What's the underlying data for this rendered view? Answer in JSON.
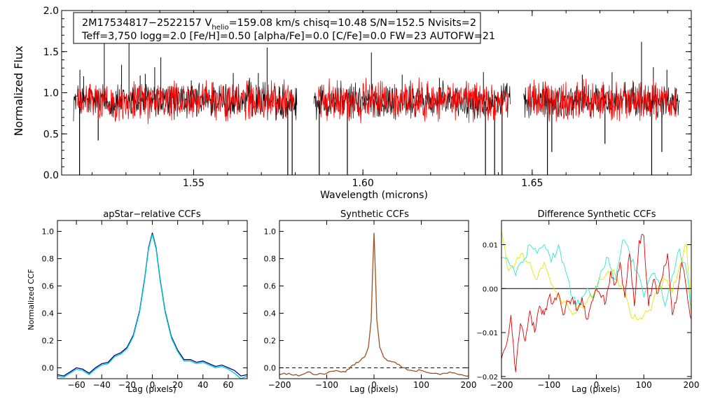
{
  "chart_data": [
    {
      "type": "line",
      "panel": "spectrum",
      "title": "",
      "xlabel": "Wavelength (microns)",
      "ylabel": "Normalized Flux",
      "xlim": [
        1.511,
        1.697
      ],
      "ylim": [
        0.0,
        2.0
      ],
      "xticks": [
        "1.55",
        "1.60",
        "1.65"
      ],
      "yticks": [
        "0.0",
        "0.5",
        "1.0",
        "1.5",
        "2.0"
      ],
      "info_line1_prefix": "2M17534817−2522157  V",
      "info_line1_sub": "helio",
      "info_line1_suffix": "=159.08 km/s  chisq=10.48  S/N=152.5  Nvisits=2",
      "info_line2": "Teff=3,750 logg=2.0 [Fe/H]=0.50 [alpha/Fe]=0.0 [C/Fe]=0.0 FW=23 AUTOFW=21",
      "chips": [
        [
          1.5145,
          1.5805
        ],
        [
          1.5855,
          1.6435
        ],
        [
          1.6475,
          1.6935
        ]
      ],
      "continuum": 0.9,
      "emission_spikes": [
        [
          1.5164,
          1.28
        ],
        [
          1.5175,
          1.2
        ],
        [
          1.5236,
          1.78
        ],
        [
          1.5287,
          1.34
        ],
        [
          1.5309,
          1.62
        ],
        [
          1.5342,
          1.21
        ],
        [
          1.5357,
          1.23
        ],
        [
          1.5385,
          1.31
        ],
        [
          1.5403,
          1.43
        ],
        [
          1.5493,
          1.15
        ],
        [
          1.5557,
          1.13
        ],
        [
          1.5617,
          1.24
        ],
        [
          1.5665,
          1.18
        ],
        [
          1.5691,
          1.24
        ],
        [
          1.5717,
          1.55
        ],
        [
          1.6025,
          1.49
        ],
        [
          1.6116,
          1.22
        ],
        [
          1.6226,
          1.18
        ],
        [
          1.6356,
          1.25
        ],
        [
          1.6648,
          1.22
        ],
        [
          1.6736,
          1.25
        ],
        [
          1.6823,
          1.62
        ],
        [
          1.6858,
          1.31
        ],
        [
          1.6898,
          1.28
        ]
      ],
      "absorption_spikes": [
        [
          1.5163,
          0.0
        ],
        [
          1.5218,
          0.42
        ],
        [
          1.5778,
          0.0
        ],
        [
          1.5791,
          0.0
        ],
        [
          1.5871,
          0.0
        ],
        [
          1.5954,
          0.0
        ],
        [
          1.6362,
          0.0
        ],
        [
          1.6389,
          0.0
        ],
        [
          1.6411,
          0.0
        ],
        [
          1.6545,
          0.0
        ],
        [
          1.6558,
          0.28
        ],
        [
          1.6715,
          0.38
        ],
        [
          1.6853,
          0.0
        ],
        [
          1.6883,
          0.28
        ]
      ],
      "series": [
        {
          "name": "observed",
          "color": "#000000"
        },
        {
          "name": "model",
          "color": "#ff0000"
        }
      ]
    },
    {
      "type": "line",
      "panel": "apstar_ccf",
      "title": "apStar−relative CCFs",
      "xlabel": "Lag (pixels)",
      "ylabel": "Normalized CCF",
      "xlim": [
        -75,
        75
      ],
      "ylim": [
        -0.08,
        1.08
      ],
      "xticks": [
        "−60",
        "−40",
        "−20",
        "0",
        "20",
        "40",
        "60"
      ],
      "xtick_values": [
        -60,
        -40,
        -20,
        0,
        20,
        40,
        60
      ],
      "yticks": [
        "0.0",
        "0.2",
        "0.4",
        "0.6",
        "0.8",
        "1.0"
      ],
      "ytick_values": [
        0.0,
        0.2,
        0.4,
        0.6,
        0.8,
        1.0
      ],
      "series": [
        {
          "name": "visit 1",
          "color": "#000080",
          "x": [
            -75,
            -70,
            -65,
            -60,
            -55,
            -50,
            -45,
            -40,
            -35,
            -30,
            -25,
            -20,
            -15,
            -10,
            -6,
            -3,
            0,
            3,
            6,
            10,
            15,
            20,
            25,
            30,
            35,
            40,
            45,
            50,
            55,
            60,
            65,
            70,
            75
          ],
          "y": [
            -0.05,
            -0.06,
            -0.03,
            0.0,
            -0.01,
            -0.04,
            0.0,
            0.03,
            0.04,
            0.09,
            0.11,
            0.15,
            0.24,
            0.42,
            0.66,
            0.88,
            0.99,
            0.88,
            0.66,
            0.42,
            0.23,
            0.13,
            0.06,
            0.06,
            0.04,
            0.05,
            0.03,
            0.01,
            0.02,
            0.0,
            -0.02,
            -0.06,
            -0.05
          ]
        },
        {
          "name": "visit 2",
          "color": "#00cccc",
          "x": [
            -75,
            -70,
            -65,
            -60,
            -55,
            -50,
            -45,
            -40,
            -35,
            -30,
            -25,
            -20,
            -15,
            -10,
            -6,
            -3,
            0,
            3,
            6,
            10,
            15,
            20,
            25,
            30,
            35,
            40,
            45,
            50,
            55,
            60,
            65,
            70,
            75
          ],
          "y": [
            -0.06,
            -0.07,
            -0.04,
            -0.01,
            -0.02,
            -0.05,
            -0.01,
            0.02,
            0.03,
            0.08,
            0.1,
            0.14,
            0.23,
            0.41,
            0.65,
            0.87,
            0.98,
            0.87,
            0.65,
            0.41,
            0.22,
            0.12,
            0.05,
            0.05,
            0.03,
            0.04,
            0.02,
            0.0,
            0.01,
            -0.01,
            -0.04,
            -0.08,
            -0.06
          ]
        }
      ]
    },
    {
      "type": "line",
      "panel": "synthetic_ccf",
      "title": "Synthetic CCFs",
      "xlabel": "Lag (pixels)",
      "ylabel": "",
      "xlim": [
        -200,
        200
      ],
      "ylim": [
        -0.08,
        1.08
      ],
      "xticks": [
        "−200",
        "−100",
        "0",
        "100",
        "200"
      ],
      "xtick_values": [
        -200,
        -100,
        0,
        100,
        200
      ],
      "yticks": [
        "0.0",
        "0.2",
        "0.4",
        "0.6",
        "0.8",
        "1.0"
      ],
      "ytick_values": [
        0.0,
        0.2,
        0.4,
        0.6,
        0.8,
        1.0
      ],
      "reference_line": {
        "y": 0.0,
        "style": "dashed"
      },
      "series": [
        {
          "name": "synthetic peak",
          "color": "#a05020",
          "x": [
            -200,
            -180,
            -160,
            -140,
            -120,
            -100,
            -80,
            -60,
            -45,
            -30,
            -20,
            -12,
            -6,
            -3,
            0,
            3,
            6,
            12,
            20,
            30,
            45,
            60,
            80,
            100,
            120,
            140,
            160,
            180,
            200
          ],
          "y": [
            -0.05,
            -0.04,
            -0.06,
            -0.03,
            -0.05,
            -0.04,
            -0.02,
            -0.03,
            0.02,
            0.05,
            0.08,
            0.15,
            0.35,
            0.7,
            0.99,
            0.7,
            0.35,
            0.15,
            0.08,
            0.05,
            0.04,
            0.0,
            -0.02,
            -0.02,
            -0.04,
            -0.05,
            -0.03,
            -0.05,
            -0.06
          ]
        }
      ]
    },
    {
      "type": "line",
      "panel": "difference_ccf",
      "title": "Difference Synthetic CCFs",
      "xlabel": "Lag (pixels)",
      "ylabel": "",
      "xlim": [
        -200,
        200
      ],
      "ylim": [
        -0.0205,
        0.0155
      ],
      "xticks": [
        "−200",
        "−100",
        "0",
        "100",
        "200"
      ],
      "xtick_values": [
        -200,
        -100,
        0,
        100,
        200
      ],
      "yticks": [
        "−0.02",
        "−0.01",
        "0.00",
        "0.01"
      ],
      "ytick_values": [
        -0.02,
        -0.01,
        0.0,
        0.01
      ],
      "reference_line": {
        "y": 0.0,
        "style": "solid"
      },
      "series": [
        {
          "name": "yellow",
          "color": "#e6e600",
          "x": [
            -200,
            -185,
            -170,
            -155,
            -140,
            -125,
            -110,
            -95,
            -80,
            -65,
            -50,
            -35,
            -20,
            -5,
            10,
            25,
            40,
            55,
            70,
            85,
            100,
            115,
            130,
            145,
            160,
            175,
            190,
            200
          ],
          "y": [
            0.013,
            0.004,
            0.006,
            0.008,
            0.006,
            0.002,
            0.006,
            0.001,
            -0.002,
            -0.003,
            -0.006,
            -0.004,
            -0.003,
            -0.001,
            0.002,
            0.004,
            0.003,
            0.0,
            -0.005,
            -0.007,
            -0.006,
            -0.005,
            0.0,
            0.002,
            -0.001,
            0.005,
            0.01,
            -0.006
          ]
        },
        {
          "name": "cyan",
          "color": "#33e6cc",
          "x": [
            -200,
            -185,
            -170,
            -155,
            -140,
            -125,
            -110,
            -95,
            -80,
            -65,
            -50,
            -35,
            -20,
            -5,
            10,
            25,
            40,
            55,
            70,
            85,
            100,
            115,
            130,
            145,
            160,
            175,
            190,
            200
          ],
          "y": [
            0.007,
            0.006,
            0.003,
            0.006,
            0.01,
            0.008,
            0.01,
            0.006,
            0.01,
            0.004,
            -0.002,
            -0.004,
            0.0,
            -0.002,
            0.004,
            0.007,
            0.002,
            0.011,
            0.008,
            0.004,
            -0.002,
            0.003,
            0.002,
            -0.004,
            0.003,
            0.009,
            0.004,
            -0.005
          ]
        },
        {
          "name": "red",
          "color": "#e60000",
          "x": [
            -200,
            -190,
            -180,
            -170,
            -160,
            -150,
            -140,
            -130,
            -120,
            -110,
            -100,
            -90,
            -80,
            -70,
            -60,
            -50,
            -40,
            -30,
            -20,
            -10,
            0,
            10,
            20,
            30,
            40,
            50,
            60,
            70,
            80,
            90,
            100,
            110,
            120,
            130,
            140,
            150,
            160,
            170,
            180,
            190,
            200
          ],
          "y": [
            -0.016,
            -0.013,
            -0.006,
            -0.019,
            -0.008,
            -0.012,
            -0.005,
            -0.01,
            -0.004,
            -0.006,
            -0.002,
            -0.003,
            -0.001,
            -0.006,
            -0.003,
            -0.002,
            -0.005,
            -0.002,
            -0.007,
            -0.003,
            0.0,
            -0.002,
            -0.003,
            0.004,
            0.001,
            0.006,
            -0.002,
            0.008,
            -0.004,
            0.011,
            0.012,
            -0.004,
            0.002,
            -0.001,
            0.003,
            0.008,
            -0.006,
            -0.002,
            0.006,
            0.0,
            -0.007
          ]
        }
      ]
    }
  ]
}
